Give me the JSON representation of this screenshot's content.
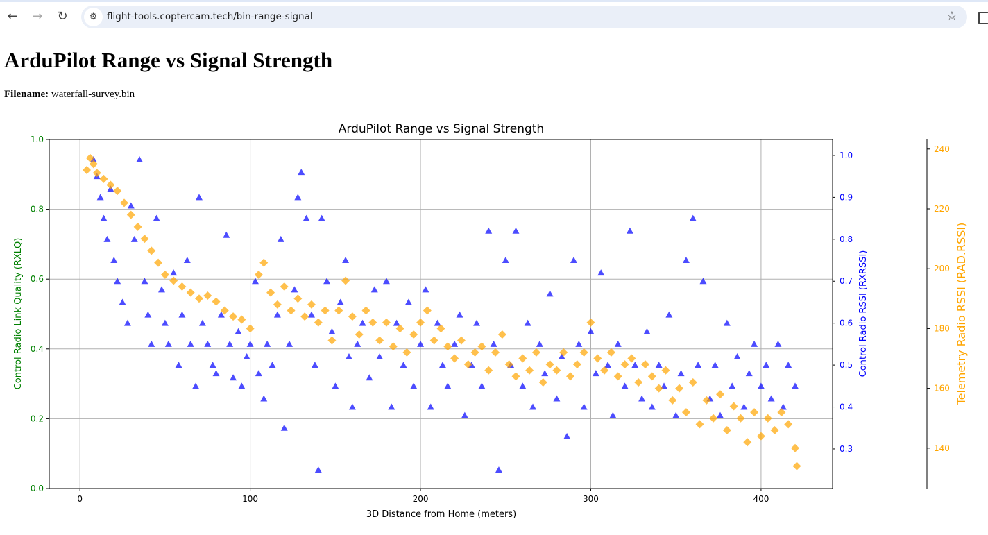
{
  "browser": {
    "url": "flight-tools.coptercam.tech/bin-range-signal",
    "icons": [
      "back-icon",
      "forward-icon",
      "reload-icon",
      "site-settings-icon",
      "bookmark-star-icon",
      "extension-icon"
    ]
  },
  "page": {
    "title": "ArduPilot Range vs Signal Strength",
    "filename_label": "Filename:",
    "filename": "waterfall-survey.bin"
  },
  "colors": {
    "left_axis": "#008000",
    "rxrssi": "#0000ff",
    "rad_rssi": "#ffa500",
    "grid": "#b0b0b0"
  },
  "chart_data": {
    "type": "scatter",
    "title": "ArduPilot Range vs Signal Strength",
    "xlabel": "3D Distance from Home (meters)",
    "xlim": [
      -18,
      442
    ],
    "xticks": [
      0,
      100,
      200,
      300,
      400
    ],
    "grid": true,
    "axes": {
      "left": {
        "label": "Control Radio Link Quality (RXLQ)",
        "ylim": [
          0.0,
          1.0
        ],
        "ticks": [
          "0.0",
          "0.2",
          "0.4",
          "0.6",
          "0.8",
          "1.0"
        ]
      },
      "right1": {
        "label": "Control Radio RSSI (RXRSSI)",
        "ylim": [
          0.2056,
          1.038
        ],
        "ticks": [
          "0.3",
          "0.4",
          "0.5",
          "0.6",
          "0.7",
          "0.8",
          "0.9",
          "1.0"
        ]
      },
      "right2": {
        "label": "Telemetry Radio RSSI (RAD.RSSI)",
        "ylim": [
          126.5,
          243.2
        ],
        "ticks": [
          "140",
          "160",
          "180",
          "200",
          "220",
          "240"
        ]
      }
    },
    "series": [
      {
        "name": "RXRSSI",
        "axis": "right1",
        "marker": "triangle",
        "points": [
          [
            8,
            0.99
          ],
          [
            10,
            0.95
          ],
          [
            12,
            0.9
          ],
          [
            14,
            0.85
          ],
          [
            16,
            0.8
          ],
          [
            18,
            0.92
          ],
          [
            20,
            0.75
          ],
          [
            22,
            0.7
          ],
          [
            25,
            0.65
          ],
          [
            28,
            0.6
          ],
          [
            30,
            0.88
          ],
          [
            32,
            0.8
          ],
          [
            35,
            0.99
          ],
          [
            38,
            0.7
          ],
          [
            40,
            0.62
          ],
          [
            42,
            0.55
          ],
          [
            45,
            0.85
          ],
          [
            48,
            0.68
          ],
          [
            50,
            0.6
          ],
          [
            52,
            0.55
          ],
          [
            55,
            0.72
          ],
          [
            58,
            0.5
          ],
          [
            60,
            0.62
          ],
          [
            63,
            0.75
          ],
          [
            65,
            0.55
          ],
          [
            68,
            0.45
          ],
          [
            70,
            0.9
          ],
          [
            72,
            0.6
          ],
          [
            75,
            0.55
          ],
          [
            78,
            0.5
          ],
          [
            80,
            0.48
          ],
          [
            83,
            0.62
          ],
          [
            86,
            0.81
          ],
          [
            88,
            0.55
          ],
          [
            90,
            0.47
          ],
          [
            93,
            0.58
          ],
          [
            95,
            0.45
          ],
          [
            98,
            0.52
          ],
          [
            100,
            0.55
          ],
          [
            103,
            0.7
          ],
          [
            105,
            0.48
          ],
          [
            108,
            0.42
          ],
          [
            110,
            0.55
          ],
          [
            113,
            0.5
          ],
          [
            116,
            0.62
          ],
          [
            118,
            0.8
          ],
          [
            120,
            0.35
          ],
          [
            123,
            0.55
          ],
          [
            126,
            0.68
          ],
          [
            128,
            0.9
          ],
          [
            130,
            0.96
          ],
          [
            133,
            0.85
          ],
          [
            136,
            0.62
          ],
          [
            138,
            0.5
          ],
          [
            140,
            0.25
          ],
          [
            142,
            0.85
          ],
          [
            145,
            0.7
          ],
          [
            148,
            0.58
          ],
          [
            150,
            0.45
          ],
          [
            153,
            0.65
          ],
          [
            156,
            0.75
          ],
          [
            158,
            0.52
          ],
          [
            160,
            0.4
          ],
          [
            163,
            0.55
          ],
          [
            166,
            0.6
          ],
          [
            170,
            0.47
          ],
          [
            173,
            0.68
          ],
          [
            176,
            0.52
          ],
          [
            180,
            0.7
          ],
          [
            183,
            0.4
          ],
          [
            186,
            0.6
          ],
          [
            190,
            0.5
          ],
          [
            193,
            0.65
          ],
          [
            196,
            0.45
          ],
          [
            200,
            0.55
          ],
          [
            203,
            0.68
          ],
          [
            206,
            0.4
          ],
          [
            210,
            0.6
          ],
          [
            213,
            0.5
          ],
          [
            216,
            0.45
          ],
          [
            220,
            0.55
          ],
          [
            223,
            0.62
          ],
          [
            226,
            0.38
          ],
          [
            230,
            0.5
          ],
          [
            233,
            0.6
          ],
          [
            236,
            0.45
          ],
          [
            240,
            0.82
          ],
          [
            243,
            0.55
          ],
          [
            246,
            0.25
          ],
          [
            250,
            0.75
          ],
          [
            253,
            0.5
          ],
          [
            256,
            0.82
          ],
          [
            260,
            0.45
          ],
          [
            263,
            0.6
          ],
          [
            266,
            0.4
          ],
          [
            270,
            0.55
          ],
          [
            273,
            0.48
          ],
          [
            276,
            0.67
          ],
          [
            280,
            0.42
          ],
          [
            283,
            0.52
          ],
          [
            286,
            0.33
          ],
          [
            290,
            0.75
          ],
          [
            293,
            0.55
          ],
          [
            296,
            0.4
          ],
          [
            300,
            0.58
          ],
          [
            303,
            0.48
          ],
          [
            306,
            0.72
          ],
          [
            310,
            0.5
          ],
          [
            313,
            0.38
          ],
          [
            316,
            0.55
          ],
          [
            320,
            0.45
          ],
          [
            323,
            0.82
          ],
          [
            326,
            0.5
          ],
          [
            330,
            0.42
          ],
          [
            333,
            0.58
          ],
          [
            336,
            0.4
          ],
          [
            340,
            0.5
          ],
          [
            343,
            0.45
          ],
          [
            346,
            0.62
          ],
          [
            350,
            0.38
          ],
          [
            353,
            0.48
          ],
          [
            356,
            0.75
          ],
          [
            360,
            0.85
          ],
          [
            363,
            0.5
          ],
          [
            366,
            0.7
          ],
          [
            370,
            0.42
          ],
          [
            373,
            0.5
          ],
          [
            376,
            0.38
          ],
          [
            380,
            0.6
          ],
          [
            383,
            0.45
          ],
          [
            386,
            0.52
          ],
          [
            390,
            0.4
          ],
          [
            393,
            0.48
          ],
          [
            396,
            0.55
          ],
          [
            400,
            0.45
          ],
          [
            403,
            0.5
          ],
          [
            406,
            0.42
          ],
          [
            410,
            0.55
          ],
          [
            413,
            0.4
          ],
          [
            416,
            0.5
          ],
          [
            420,
            0.45
          ]
        ]
      },
      {
        "name": "RAD.RSSI",
        "axis": "right2",
        "marker": "diamond",
        "points": [
          [
            4,
            233
          ],
          [
            6,
            237
          ],
          [
            8,
            235
          ],
          [
            10,
            232
          ],
          [
            14,
            230
          ],
          [
            18,
            228
          ],
          [
            22,
            226
          ],
          [
            26,
            222
          ],
          [
            30,
            218
          ],
          [
            34,
            214
          ],
          [
            38,
            210
          ],
          [
            42,
            206
          ],
          [
            46,
            202
          ],
          [
            50,
            198
          ],
          [
            55,
            196
          ],
          [
            60,
            194
          ],
          [
            65,
            192
          ],
          [
            70,
            190
          ],
          [
            75,
            191
          ],
          [
            80,
            189
          ],
          [
            85,
            186
          ],
          [
            90,
            184
          ],
          [
            95,
            183
          ],
          [
            100,
            180
          ],
          [
            105,
            198
          ],
          [
            108,
            202
          ],
          [
            112,
            192
          ],
          [
            116,
            188
          ],
          [
            120,
            194
          ],
          [
            124,
            186
          ],
          [
            128,
            190
          ],
          [
            132,
            184
          ],
          [
            136,
            188
          ],
          [
            140,
            182
          ],
          [
            144,
            186
          ],
          [
            148,
            176
          ],
          [
            152,
            186
          ],
          [
            156,
            196
          ],
          [
            160,
            184
          ],
          [
            164,
            178
          ],
          [
            168,
            186
          ],
          [
            172,
            182
          ],
          [
            176,
            176
          ],
          [
            180,
            182
          ],
          [
            184,
            174
          ],
          [
            188,
            180
          ],
          [
            192,
            172
          ],
          [
            196,
            178
          ],
          [
            200,
            182
          ],
          [
            204,
            186
          ],
          [
            208,
            176
          ],
          [
            212,
            180
          ],
          [
            216,
            174
          ],
          [
            220,
            170
          ],
          [
            224,
            176
          ],
          [
            228,
            168
          ],
          [
            232,
            172
          ],
          [
            236,
            174
          ],
          [
            240,
            166
          ],
          [
            244,
            172
          ],
          [
            248,
            178
          ],
          [
            252,
            168
          ],
          [
            256,
            164
          ],
          [
            260,
            170
          ],
          [
            264,
            166
          ],
          [
            268,
            172
          ],
          [
            272,
            162
          ],
          [
            276,
            168
          ],
          [
            280,
            166
          ],
          [
            284,
            172
          ],
          [
            288,
            164
          ],
          [
            292,
            168
          ],
          [
            296,
            172
          ],
          [
            300,
            182
          ],
          [
            304,
            170
          ],
          [
            308,
            166
          ],
          [
            312,
            172
          ],
          [
            316,
            164
          ],
          [
            320,
            168
          ],
          [
            324,
            170
          ],
          [
            328,
            162
          ],
          [
            332,
            168
          ],
          [
            336,
            164
          ],
          [
            340,
            160
          ],
          [
            344,
            166
          ],
          [
            348,
            156
          ],
          [
            352,
            160
          ],
          [
            356,
            152
          ],
          [
            360,
            162
          ],
          [
            364,
            148
          ],
          [
            368,
            156
          ],
          [
            372,
            150
          ],
          [
            376,
            158
          ],
          [
            380,
            146
          ],
          [
            384,
            154
          ],
          [
            388,
            150
          ],
          [
            392,
            142
          ],
          [
            396,
            152
          ],
          [
            400,
            144
          ],
          [
            404,
            150
          ],
          [
            408,
            146
          ],
          [
            412,
            152
          ],
          [
            416,
            148
          ],
          [
            420,
            140
          ],
          [
            421,
            134
          ]
        ]
      }
    ]
  }
}
